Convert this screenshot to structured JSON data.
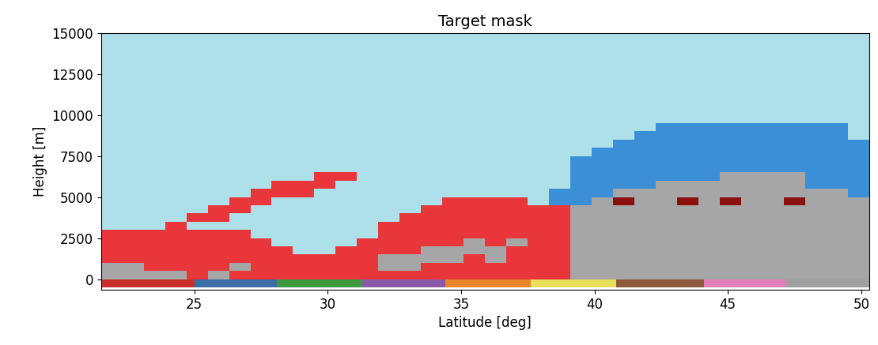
{
  "chart_data": {
    "type": "heatmap",
    "title": "Target mask",
    "x_label": "Latitude [deg]",
    "y_label": "Height [m]",
    "xlim": [
      21.5,
      50.3
    ],
    "ylim": [
      -650,
      15000
    ],
    "xticks": [
      25,
      30,
      35,
      40,
      45,
      50
    ],
    "yticks": [
      0,
      2500,
      5000,
      7500,
      10000,
      12500,
      15000
    ],
    "colors": [
      "#ade0e8",
      "#a6a6a6",
      "#e8363b",
      "#8b1010",
      "#3b8fd6"
    ],
    "x_edges": [
      21.5,
      22.3,
      23.1,
      23.9,
      24.7,
      25.5,
      26.3,
      27.1,
      27.9,
      28.7,
      29.5,
      30.3,
      31.1,
      31.9,
      32.7,
      33.5,
      34.3,
      35.1,
      35.9,
      36.7,
      37.5,
      38.3,
      39.1,
      39.9,
      40.7,
      41.5,
      42.3,
      43.1,
      43.9,
      44.7,
      45.5,
      46.3,
      47.1,
      47.9,
      48.7,
      49.5,
      50.3
    ],
    "y_edges": [
      0,
      500,
      1000,
      1500,
      2000,
      2500,
      3000,
      3500,
      4000,
      4500,
      5000,
      5500,
      6000,
      6500,
      7000,
      7500,
      8000,
      8500,
      9000,
      9500,
      10000,
      10500,
      11000,
      11500,
      12000,
      12500,
      13000,
      13500,
      14000,
      14500,
      15000
    ],
    "cells_by_column": [
      [
        1,
        1,
        2,
        2,
        2,
        2,
        0,
        0,
        0,
        0,
        0,
        0,
        0,
        0,
        0,
        0,
        0,
        0,
        0,
        0,
        0,
        0,
        0,
        0,
        0,
        0,
        0,
        0,
        0,
        0
      ],
      [
        1,
        1,
        2,
        2,
        2,
        2,
        0,
        0,
        0,
        0,
        0,
        0,
        0,
        0,
        0,
        0,
        0,
        0,
        0,
        0,
        0,
        0,
        0,
        0,
        0,
        0,
        0,
        0,
        0,
        0
      ],
      [
        1,
        2,
        2,
        2,
        2,
        2,
        0,
        0,
        0,
        0,
        0,
        0,
        0,
        0,
        0,
        0,
        0,
        0,
        0,
        0,
        0,
        0,
        0,
        0,
        0,
        0,
        0,
        0,
        0,
        0
      ],
      [
        1,
        2,
        2,
        2,
        2,
        2,
        2,
        0,
        0,
        0,
        0,
        0,
        0,
        0,
        0,
        0,
        0,
        0,
        0,
        0,
        0,
        0,
        0,
        0,
        0,
        0,
        0,
        0,
        0,
        0
      ],
      [
        2,
        2,
        2,
        2,
        2,
        2,
        0,
        2,
        0,
        0,
        0,
        0,
        0,
        0,
        0,
        0,
        0,
        0,
        0,
        0,
        0,
        0,
        0,
        0,
        0,
        0,
        0,
        0,
        0,
        0
      ],
      [
        1,
        2,
        2,
        2,
        2,
        2,
        0,
        2,
        2,
        0,
        0,
        0,
        0,
        0,
        0,
        0,
        0,
        0,
        0,
        0,
        0,
        0,
        0,
        0,
        0,
        0,
        0,
        0,
        0,
        0
      ],
      [
        2,
        1,
        2,
        2,
        2,
        2,
        0,
        0,
        2,
        2,
        0,
        0,
        0,
        0,
        0,
        0,
        0,
        0,
        0,
        0,
        0,
        0,
        0,
        0,
        0,
        0,
        0,
        0,
        0,
        0
      ],
      [
        2,
        2,
        2,
        2,
        2,
        0,
        0,
        0,
        0,
        2,
        2,
        0,
        0,
        0,
        0,
        0,
        0,
        0,
        0,
        0,
        0,
        0,
        0,
        0,
        0,
        0,
        0,
        0,
        0,
        0
      ],
      [
        2,
        2,
        2,
        2,
        0,
        0,
        0,
        0,
        0,
        0,
        2,
        2,
        0,
        0,
        0,
        0,
        0,
        0,
        0,
        0,
        0,
        0,
        0,
        0,
        0,
        0,
        0,
        0,
        0,
        0
      ],
      [
        2,
        2,
        2,
        0,
        0,
        0,
        0,
        0,
        0,
        0,
        2,
        2,
        0,
        0,
        0,
        0,
        0,
        0,
        0,
        0,
        0,
        0,
        0,
        0,
        0,
        0,
        0,
        0,
        0,
        0
      ],
      [
        2,
        2,
        2,
        0,
        0,
        0,
        0,
        0,
        0,
        0,
        0,
        2,
        2,
        0,
        0,
        0,
        0,
        0,
        0,
        0,
        0,
        0,
        0,
        0,
        0,
        0,
        0,
        0,
        0,
        0
      ],
      [
        2,
        2,
        2,
        2,
        0,
        0,
        0,
        0,
        0,
        0,
        0,
        0,
        2,
        0,
        0,
        0,
        0,
        0,
        0,
        0,
        0,
        0,
        0,
        0,
        0,
        0,
        0,
        0,
        0,
        0
      ],
      [
        2,
        2,
        2,
        2,
        2,
        0,
        0,
        0,
        0,
        0,
        0,
        0,
        0,
        0,
        0,
        0,
        0,
        0,
        0,
        0,
        0,
        0,
        0,
        0,
        0,
        0,
        0,
        0,
        0,
        0
      ],
      [
        2,
        1,
        1,
        2,
        2,
        2,
        2,
        0,
        0,
        0,
        0,
        0,
        0,
        0,
        0,
        0,
        0,
        0,
        0,
        0,
        0,
        0,
        0,
        0,
        0,
        0,
        0,
        0,
        0,
        0
      ],
      [
        2,
        1,
        1,
        2,
        2,
        2,
        2,
        2,
        0,
        0,
        0,
        0,
        0,
        0,
        0,
        0,
        0,
        0,
        0,
        0,
        0,
        0,
        0,
        0,
        0,
        0,
        0,
        0,
        0,
        0
      ],
      [
        2,
        2,
        1,
        1,
        2,
        2,
        2,
        2,
        2,
        0,
        0,
        0,
        0,
        0,
        0,
        0,
        0,
        0,
        0,
        0,
        0,
        0,
        0,
        0,
        0,
        0,
        0,
        0,
        0,
        0
      ],
      [
        2,
        2,
        1,
        1,
        2,
        2,
        2,
        2,
        2,
        2,
        0,
        0,
        0,
        0,
        0,
        0,
        0,
        0,
        0,
        0,
        0,
        0,
        0,
        0,
        0,
        0,
        0,
        0,
        0,
        0
      ],
      [
        2,
        2,
        2,
        1,
        1,
        2,
        2,
        2,
        2,
        2,
        0,
        0,
        0,
        0,
        0,
        0,
        0,
        0,
        0,
        0,
        0,
        0,
        0,
        0,
        0,
        0,
        0,
        0,
        0,
        0
      ],
      [
        2,
        2,
        1,
        1,
        2,
        2,
        2,
        2,
        2,
        2,
        0,
        0,
        0,
        0,
        0,
        0,
        0,
        0,
        0,
        0,
        0,
        0,
        0,
        0,
        0,
        0,
        0,
        0,
        0,
        0
      ],
      [
        2,
        2,
        2,
        2,
        1,
        2,
        2,
        2,
        2,
        2,
        0,
        0,
        0,
        0,
        0,
        0,
        0,
        0,
        0,
        0,
        0,
        0,
        0,
        0,
        0,
        0,
        0,
        0,
        0,
        0
      ],
      [
        2,
        2,
        2,
        2,
        2,
        2,
        2,
        2,
        2,
        0,
        0,
        0,
        0,
        0,
        0,
        0,
        0,
        0,
        0,
        0,
        0,
        0,
        0,
        0,
        0,
        0,
        0,
        0,
        0,
        0
      ],
      [
        2,
        2,
        2,
        2,
        2,
        2,
        2,
        2,
        2,
        4,
        4,
        0,
        0,
        0,
        0,
        0,
        0,
        0,
        0,
        0,
        0,
        0,
        0,
        0,
        0,
        0,
        0,
        0,
        0,
        0
      ],
      [
        1,
        1,
        1,
        1,
        1,
        1,
        1,
        1,
        1,
        4,
        4,
        4,
        4,
        4,
        4,
        0,
        0,
        0,
        0,
        0,
        0,
        0,
        0,
        0,
        0,
        0,
        0,
        0,
        0,
        0
      ],
      [
        1,
        1,
        1,
        1,
        1,
        1,
        1,
        1,
        1,
        1,
        4,
        4,
        4,
        4,
        4,
        4,
        0,
        0,
        0,
        0,
        0,
        0,
        0,
        0,
        0,
        0,
        0,
        0,
        0,
        0
      ],
      [
        1,
        1,
        1,
        1,
        1,
        1,
        1,
        1,
        1,
        3,
        1,
        4,
        4,
        4,
        4,
        4,
        4,
        0,
        0,
        0,
        0,
        0,
        0,
        0,
        0,
        0,
        0,
        0,
        0,
        0
      ],
      [
        1,
        1,
        1,
        1,
        1,
        1,
        1,
        1,
        1,
        1,
        1,
        4,
        4,
        4,
        4,
        4,
        4,
        4,
        0,
        0,
        0,
        0,
        0,
        0,
        0,
        0,
        0,
        0,
        0,
        0
      ],
      [
        1,
        1,
        1,
        1,
        1,
        1,
        1,
        1,
        1,
        1,
        1,
        1,
        4,
        4,
        4,
        4,
        4,
        4,
        4,
        0,
        0,
        0,
        0,
        0,
        0,
        0,
        0,
        0,
        0,
        0
      ],
      [
        1,
        1,
        1,
        1,
        1,
        1,
        1,
        1,
        1,
        3,
        1,
        1,
        4,
        4,
        4,
        4,
        4,
        4,
        4,
        0,
        0,
        0,
        0,
        0,
        0,
        0,
        0,
        0,
        0,
        0
      ],
      [
        1,
        1,
        1,
        1,
        1,
        1,
        1,
        1,
        1,
        1,
        1,
        1,
        4,
        4,
        4,
        4,
        4,
        4,
        4,
        0,
        0,
        0,
        0,
        0,
        0,
        0,
        0,
        0,
        0,
        0
      ],
      [
        1,
        1,
        1,
        1,
        1,
        1,
        1,
        1,
        1,
        3,
        1,
        1,
        1,
        4,
        4,
        4,
        4,
        4,
        4,
        0,
        0,
        0,
        0,
        0,
        0,
        0,
        0,
        0,
        0,
        0
      ],
      [
        1,
        1,
        1,
        1,
        1,
        1,
        1,
        1,
        1,
        1,
        1,
        1,
        1,
        4,
        4,
        4,
        4,
        4,
        4,
        0,
        0,
        0,
        0,
        0,
        0,
        0,
        0,
        0,
        0,
        0
      ],
      [
        1,
        1,
        1,
        1,
        1,
        1,
        1,
        1,
        1,
        1,
        1,
        1,
        1,
        4,
        4,
        4,
        4,
        4,
        4,
        0,
        0,
        0,
        0,
        0,
        0,
        0,
        0,
        0,
        0,
        0
      ],
      [
        1,
        1,
        1,
        1,
        1,
        1,
        1,
        1,
        1,
        3,
        1,
        1,
        1,
        4,
        4,
        4,
        4,
        4,
        4,
        0,
        0,
        0,
        0,
        0,
        0,
        0,
        0,
        0,
        0,
        0
      ],
      [
        1,
        1,
        1,
        1,
        1,
        1,
        1,
        1,
        1,
        1,
        1,
        4,
        4,
        4,
        4,
        4,
        4,
        4,
        4,
        0,
        0,
        0,
        0,
        0,
        0,
        0,
        0,
        0,
        0,
        0
      ],
      [
        1,
        1,
        1,
        1,
        1,
        1,
        1,
        1,
        1,
        1,
        1,
        4,
        4,
        4,
        4,
        4,
        4,
        4,
        4,
        0,
        0,
        0,
        0,
        0,
        0,
        0,
        0,
        0,
        0,
        0
      ],
      [
        1,
        1,
        1,
        1,
        1,
        1,
        1,
        1,
        1,
        1,
        4,
        4,
        4,
        4,
        4,
        4,
        4,
        0,
        0,
        0,
        0,
        0,
        0,
        0,
        0,
        0,
        0,
        0,
        0,
        0
      ]
    ],
    "strip": {
      "edges": [
        21.5,
        25.0,
        28.1,
        31.3,
        34.4,
        37.6,
        40.8,
        44.1,
        47.2,
        50.3
      ],
      "colors": [
        "#c9302c",
        "#3a6ea5",
        "#3c9a3c",
        "#8a5aa8",
        "#e8872a",
        "#e8e05a",
        "#8c5a3a",
        "#e07fb8",
        "#a0a0a0"
      ],
      "bottom": -500,
      "top": 0
    }
  }
}
